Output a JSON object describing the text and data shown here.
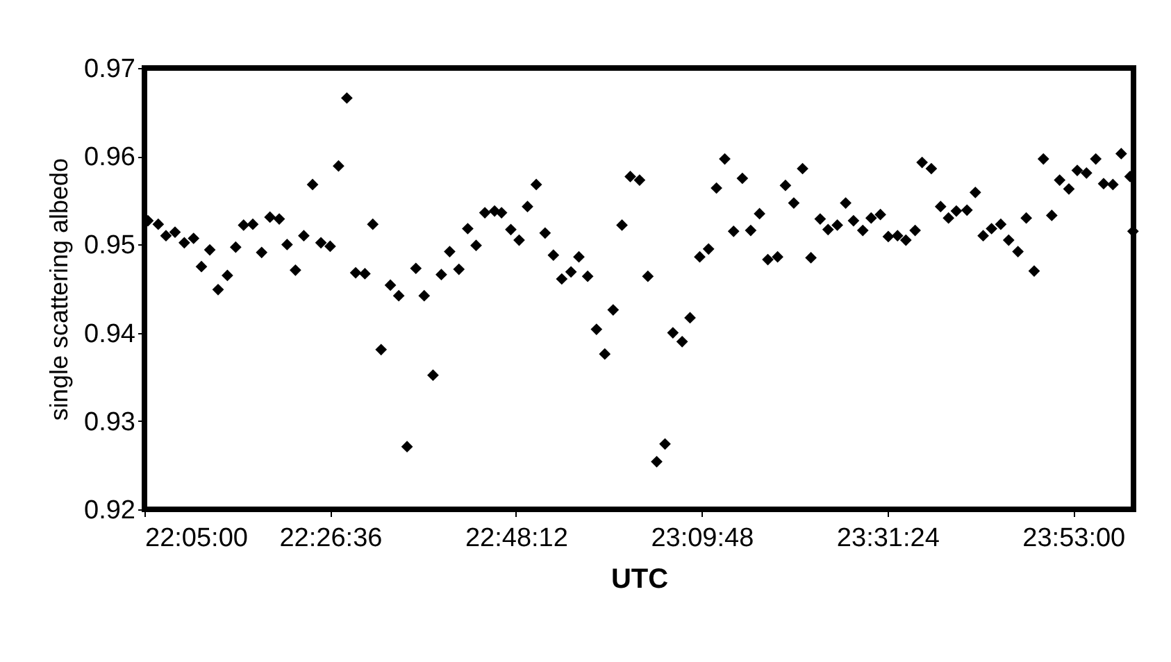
{
  "chart_data": {
    "type": "scatter",
    "xlabel": "UTC",
    "ylabel": "single scattering albedo",
    "marker": "diamond",
    "grid": false,
    "xlim": [
      22.0833,
      24.0
    ],
    "ylim": [
      0.92,
      0.97
    ],
    "xticks": [
      {
        "value": 22.0833,
        "label": "22:05:00"
      },
      {
        "value": 22.4433,
        "label": "22:26:36"
      },
      {
        "value": 22.8033,
        "label": "22:48:12"
      },
      {
        "value": 23.1633,
        "label": "23:09:48"
      },
      {
        "value": 23.5233,
        "label": "23:31:24"
      },
      {
        "value": 23.8833,
        "label": "23:53:00"
      }
    ],
    "yticks": [
      0.92,
      0.93,
      0.94,
      0.95,
      0.96,
      0.97
    ],
    "series": [
      {
        "color": "#000000",
        "x": [
          22.09,
          22.11,
          22.125,
          22.1425,
          22.1605,
          22.1785,
          22.1937,
          22.2099,
          22.226,
          22.244,
          22.2601,
          22.2754,
          22.2933,
          22.3104,
          22.3265,
          22.3445,
          22.3597,
          22.3759,
          22.3921,
          22.4091,
          22.4253,
          22.4432,
          22.4594,
          22.4755,
          22.4926,
          22.5105,
          22.5258,
          22.5419,
          22.5599,
          22.5761,
          22.5922,
          22.6093,
          22.6254,
          22.6425,
          22.6586,
          22.6748,
          22.6927,
          22.7098,
          22.726,
          22.743,
          22.7618,
          22.7753,
          22.7933,
          22.8094,
          22.8256,
          22.8426,
          22.8597,
          22.8758,
          22.892,
          22.9099,
          22.9252,
          22.9422,
          22.9593,
          22.9754,
          22.9916,
          23.0087,
          23.0248,
          23.0428,
          23.0589,
          23.076,
          23.0921,
          23.1074,
          23.1253,
          23.1406,
          23.1594,
          23.1765,
          23.1918,
          23.2079,
          23.225,
          23.242,
          23.2582,
          23.2753,
          23.2914,
          23.3103,
          23.3255,
          23.3417,
          23.3587,
          23.3749,
          23.3928,
          23.4081,
          23.426,
          23.4422,
          23.4574,
          23.4754,
          23.4916,
          23.5095,
          23.5248,
          23.5427,
          23.5589,
          23.5768,
          23.5903,
          23.6082,
          23.6262,
          23.6415,
          23.6567,
          23.6773,
          23.6935,
          23.7087,
          23.7249,
          23.7428,
          23.7581,
          23.7761,
          23.7922,
          23.8075,
          23.8254,
          23.8416,
          23.8569,
          23.8748,
          23.891,
          23.9089,
          23.9269,
          23.9421,
          23.9601,
          23.9762,
          23.9933,
          23.999
        ],
        "values": [
          0.9527,
          0.9523,
          0.951,
          0.9514,
          0.9502,
          0.9507,
          0.9475,
          0.9494,
          0.9449,
          0.9465,
          0.9497,
          0.9522,
          0.9523,
          0.9491,
          0.9531,
          0.9529,
          0.95,
          0.9471,
          0.951,
          0.9568,
          0.9502,
          0.9498,
          0.9589,
          0.9666,
          0.9468,
          0.9467,
          0.9523,
          0.9381,
          0.9454,
          0.9442,
          0.9271,
          0.9473,
          0.9442,
          0.9352,
          0.9466,
          0.9492,
          0.9472,
          0.9518,
          0.9499,
          0.9536,
          0.9538,
          0.9536,
          0.9517,
          0.9505,
          0.9543,
          0.9568,
          0.9513,
          0.9488,
          0.9461,
          0.9469,
          0.9486,
          0.9464,
          0.9404,
          0.9376,
          0.9426,
          0.9522,
          0.9577,
          0.9573,
          0.9464,
          0.9254,
          0.9274,
          0.94,
          0.939,
          0.9417,
          0.9486,
          0.9495,
          0.9564,
          0.9597,
          0.9515,
          0.9575,
          0.9516,
          0.9535,
          0.9483,
          0.9486,
          0.9567,
          0.9547,
          0.9586,
          0.9485,
          0.9529,
          0.9517,
          0.9522,
          0.9547,
          0.9527,
          0.9516,
          0.953,
          0.9534,
          0.9509,
          0.951,
          0.9505,
          0.9516,
          0.9593,
          0.9586,
          0.9543,
          0.953,
          0.9538,
          0.9539,
          0.9559,
          0.951,
          0.9518,
          0.9523,
          0.9505,
          0.9492,
          0.953,
          0.947,
          0.9597,
          0.9533,
          0.9573,
          0.9563,
          0.9584,
          0.9581,
          0.9597,
          0.9569,
          0.9568,
          0.9603,
          0.9577,
          0.9515
        ]
      }
    ]
  }
}
